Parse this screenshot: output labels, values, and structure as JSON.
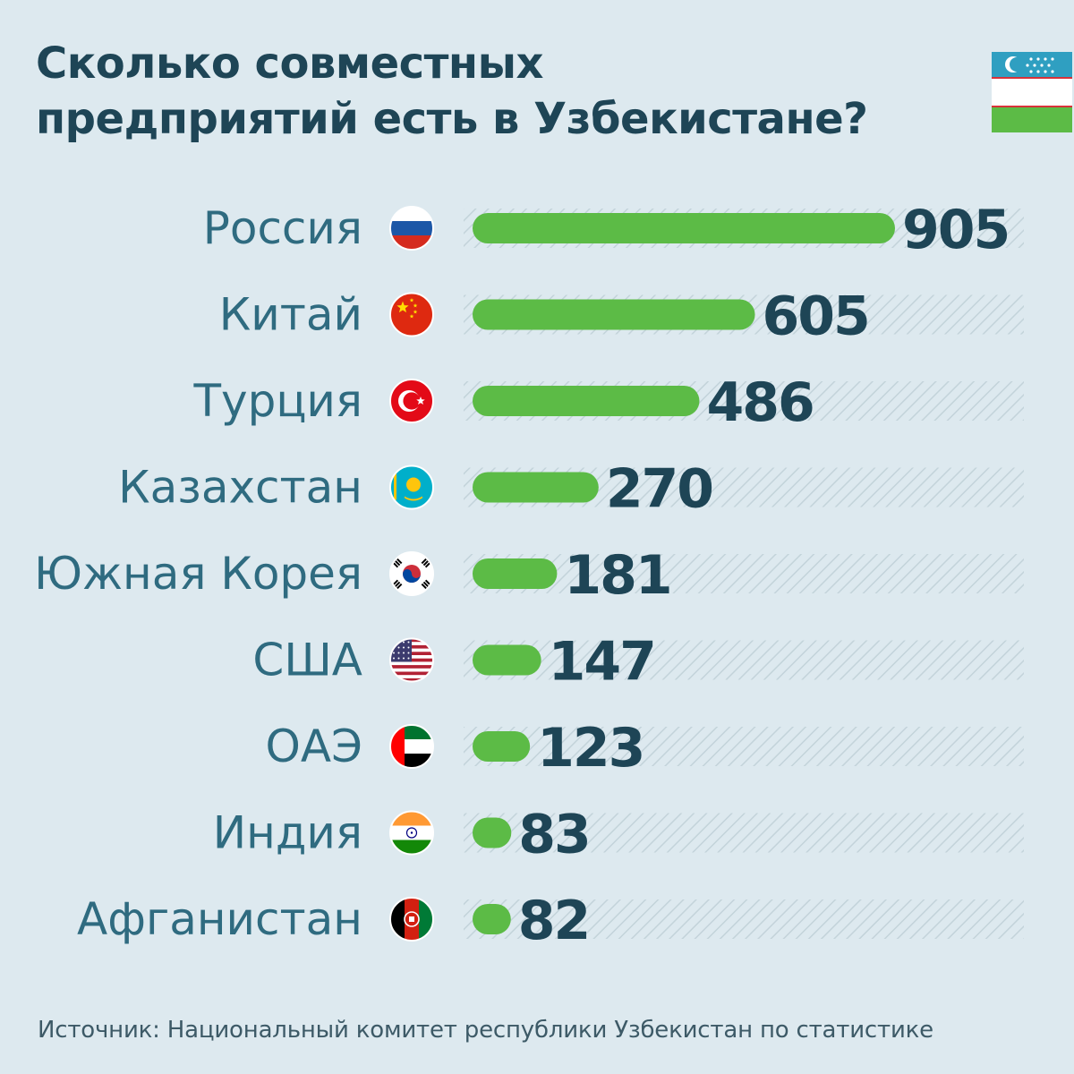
{
  "title_line1": "Сколько совместных",
  "title_line2": "предприятий есть в Узбекистане?",
  "source": "Источник: Национальный комитет республики Узбекистан по статистике",
  "colors": {
    "background": "#dde9ef",
    "bar": "#5cbb46",
    "label": "#2f6b80",
    "value": "#1e4556",
    "hatch": "#c3d3da"
  },
  "chart_data": {
    "type": "bar",
    "orientation": "horizontal",
    "title": "Сколько совместных предприятий есть в Узбекистане?",
    "categories": [
      "Россия",
      "Китай",
      "Турция",
      "Казахстан",
      "Южная Корея",
      "США",
      "ОАЭ",
      "Индия",
      "Афганистан"
    ],
    "values": [
      905,
      605,
      486,
      270,
      181,
      147,
      123,
      83,
      82
    ],
    "flags": [
      "russia-flag-icon",
      "china-flag-icon",
      "turkey-flag-icon",
      "kazakhstan-flag-icon",
      "south-korea-flag-icon",
      "usa-flag-icon",
      "uae-flag-icon",
      "india-flag-icon",
      "afghanistan-flag-icon"
    ],
    "xlim": [
      0,
      905
    ],
    "xlabel": "",
    "ylabel": ""
  }
}
